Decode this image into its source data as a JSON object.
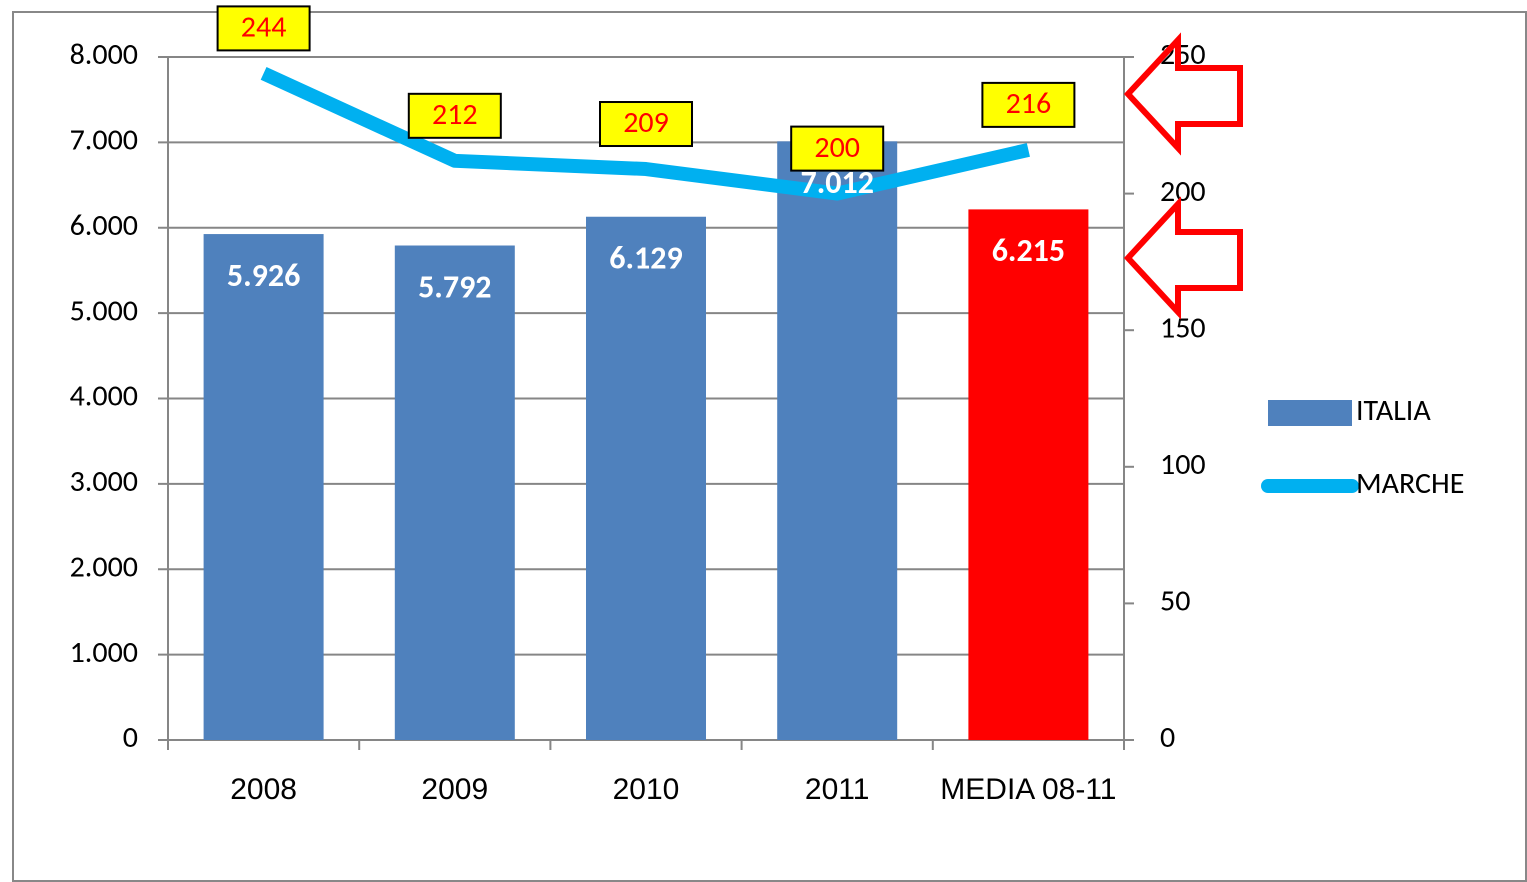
{
  "chart_data": {
    "type": "bar",
    "categories": [
      "2008",
      "2009",
      "2010",
      "2011",
      "MEDIA 08-11"
    ],
    "series": [
      {
        "name": "ITALIA",
        "type": "bar",
        "color": "#4f81bd",
        "colors": [
          "#4f81bd",
          "#4f81bd",
          "#4f81bd",
          "#4f81bd",
          "#ff0000"
        ],
        "values": [
          5926,
          5792,
          6129,
          7012,
          6215
        ],
        "value_labels": [
          "5.926",
          "5.792",
          "6.129",
          "7.012",
          "6.215"
        ]
      },
      {
        "name": "MARCHE",
        "type": "line",
        "axis": "y2",
        "color": "#00b0f0",
        "values": [
          244,
          212,
          209,
          200,
          216
        ]
      }
    ],
    "ylim": [
      0,
      8000
    ],
    "yticks": [
      0,
      {
        "value": 1000,
        "label": "1.000"
      },
      {
        "value": 2000,
        "label": "2.000"
      },
      {
        "value": 3000,
        "label": "3.000"
      },
      {
        "value": 4000,
        "label": "4.000"
      },
      {
        "value": 5000,
        "label": "5.000"
      },
      {
        "value": 6000,
        "label": "6.000"
      },
      {
        "value": 7000,
        "label": "7.000"
      },
      {
        "value": 8000,
        "label": "8.000"
      }
    ],
    "y2lim": [
      0,
      250
    ],
    "y2ticks": [
      0,
      50,
      100,
      150,
      200,
      250
    ],
    "grid": true,
    "legend": "right"
  }
}
